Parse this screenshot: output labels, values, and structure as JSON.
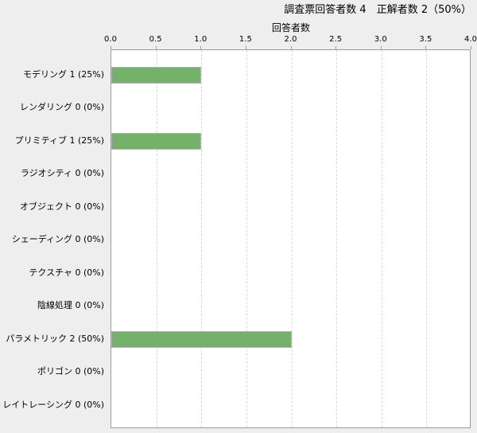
{
  "header": {
    "title": "調査票回答者数 4　正解者数 2（50%）"
  },
  "chart_data": {
    "type": "bar",
    "orientation": "horizontal",
    "title": "調査票回答者数 4　正解者数 2（50%）",
    "xlabel": "回答者数",
    "xlim": [
      0,
      4
    ],
    "xticks": [
      0.0,
      0.5,
      1.0,
      1.5,
      2.0,
      2.5,
      3.0,
      3.5,
      4.0
    ],
    "xtick_labels": [
      "0.0",
      "0.5",
      "1.0",
      "1.5",
      "2.0",
      "2.5",
      "3.0",
      "3.5",
      "4.0"
    ],
    "grid": "vertical-dashed",
    "categories": [
      "モデリング",
      "レンダリング",
      "プリミティブ",
      "ラジオシティ",
      "オブジェクト",
      "シェーディング",
      "テクスチャ",
      "陰線処理",
      "パラメトリック",
      "ポリゴン",
      "レイトレーシング"
    ],
    "values": [
      1,
      0,
      1,
      0,
      0,
      0,
      0,
      0,
      2,
      0,
      0
    ],
    "percents": [
      "25%",
      "0%",
      "25%",
      "0%",
      "0%",
      "0%",
      "0%",
      "0%",
      "50%",
      "0%",
      "0%"
    ],
    "colors": {
      "bar_fill": "#74b169",
      "bar_border": "#b4b4b4",
      "plot_background": "#ffffff",
      "page_background": "#eeeeee",
      "axis_line": "#9c9c9c",
      "gridline": "#d9d9d9",
      "text": "#000000"
    }
  }
}
